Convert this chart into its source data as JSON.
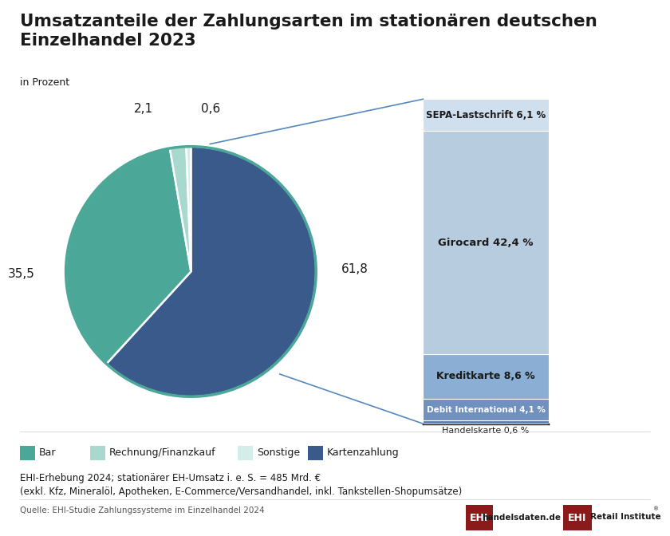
{
  "title": "Umsatzanteile der Zahlungsarten im stationären deutschen\nEinzelhandel 2023",
  "subtitle": "in Prozent",
  "pie_values": [
    61.8,
    35.5,
    2.1,
    0.6
  ],
  "pie_labels": [
    "61,8",
    "35,5",
    "2,1",
    "0,6"
  ],
  "pie_colors": [
    "#3A5A8C",
    "#4BA898",
    "#A8D8CE",
    "#D4EDE8"
  ],
  "pie_legend_labels": [
    "Bar",
    "Rechnung/Finanzkauf",
    "Sonstige",
    "Kartenzahlung"
  ],
  "pie_legend_colors": [
    "#4BA898",
    "#A8D8CE",
    "#D4EDE8",
    "#3A5A8C"
  ],
  "bar_stacked_order_labels": [
    "Handelskarte 0,6 %",
    "Debit International 4,1 %",
    "Kreditkarte 8,6 %",
    "Girocard 42,4 %",
    "SEPA-Lastschrift 6,1 %"
  ],
  "bar_stacked_order_values": [
    0.6,
    4.1,
    8.6,
    42.4,
    6.1
  ],
  "bar_stacked_order_colors": [
    "#5B7FAF",
    "#7090C0",
    "#8BAED4",
    "#B8CCDF",
    "#D0DFEE"
  ],
  "note1": "EHI-Erhebung 2024; stationärer EH-Umsatz i. e. S. = 485 Mrd. €",
  "note2": "(exkl. Kfz, Mineralöl, Apotheken, E-Commerce/Versandhandel, inkl. Tankstellen-Shopumsätze)",
  "source": "Quelle: EHI-Studie Zahlungssysteme im Einzelhandel 2024",
  "bg_color": "#FFFFFF",
  "title_color": "#1A1A1A",
  "text_color": "#1A1A1A",
  "line_color": "#5588BB"
}
